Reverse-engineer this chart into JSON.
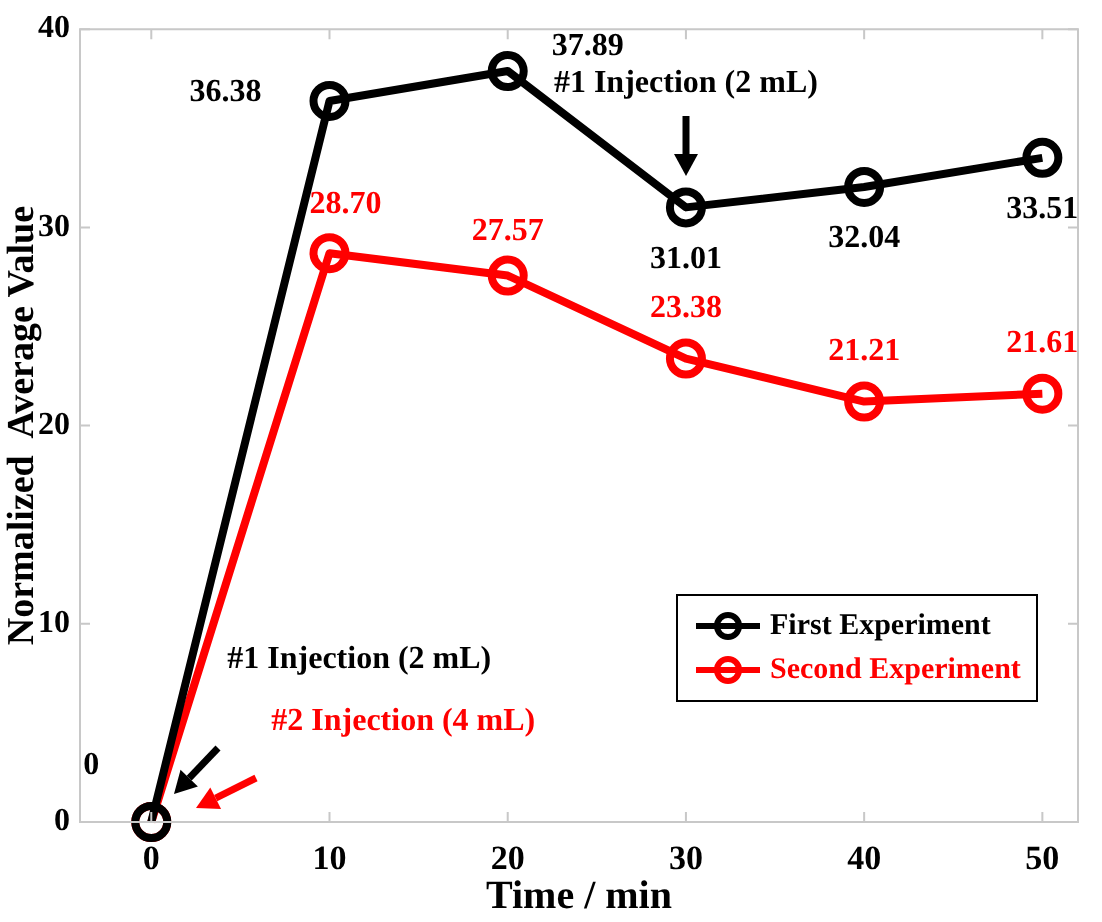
{
  "chart_data": {
    "type": "line",
    "xlabel": "Time / min",
    "ylabel": "Normalized  Average Value",
    "x": [
      0,
      10,
      20,
      30,
      40,
      50
    ],
    "series": [
      {
        "name": "First Experiment",
        "color": "#000000",
        "values": [
          0,
          36.38,
          37.89,
          31.01,
          32.04,
          33.51
        ],
        "value_labels": [
          "0",
          "36.38",
          "37.89",
          "31.01",
          "32.04",
          "33.51"
        ]
      },
      {
        "name": "Second Experiment",
        "color": "#ff0000",
        "values": [
          0,
          28.7,
          27.57,
          23.38,
          21.21,
          21.61
        ],
        "value_labels": [
          null,
          "28.70",
          "27.57",
          "23.38",
          "21.21",
          "21.61"
        ]
      }
    ],
    "xlim": [
      -4,
      52
    ],
    "xticks": [
      0,
      10,
      20,
      30,
      40,
      50
    ],
    "ylim": [
      0,
      40
    ],
    "yticks": [
      0,
      10,
      20,
      30,
      40
    ],
    "grid": false,
    "legend": "bottom right",
    "marker": "circle",
    "line_style": "solid",
    "annotations": [
      "#1 Injection (2 mL)",
      "#1 Injection (2 mL)",
      "#2 Injection (4 mL)"
    ]
  }
}
